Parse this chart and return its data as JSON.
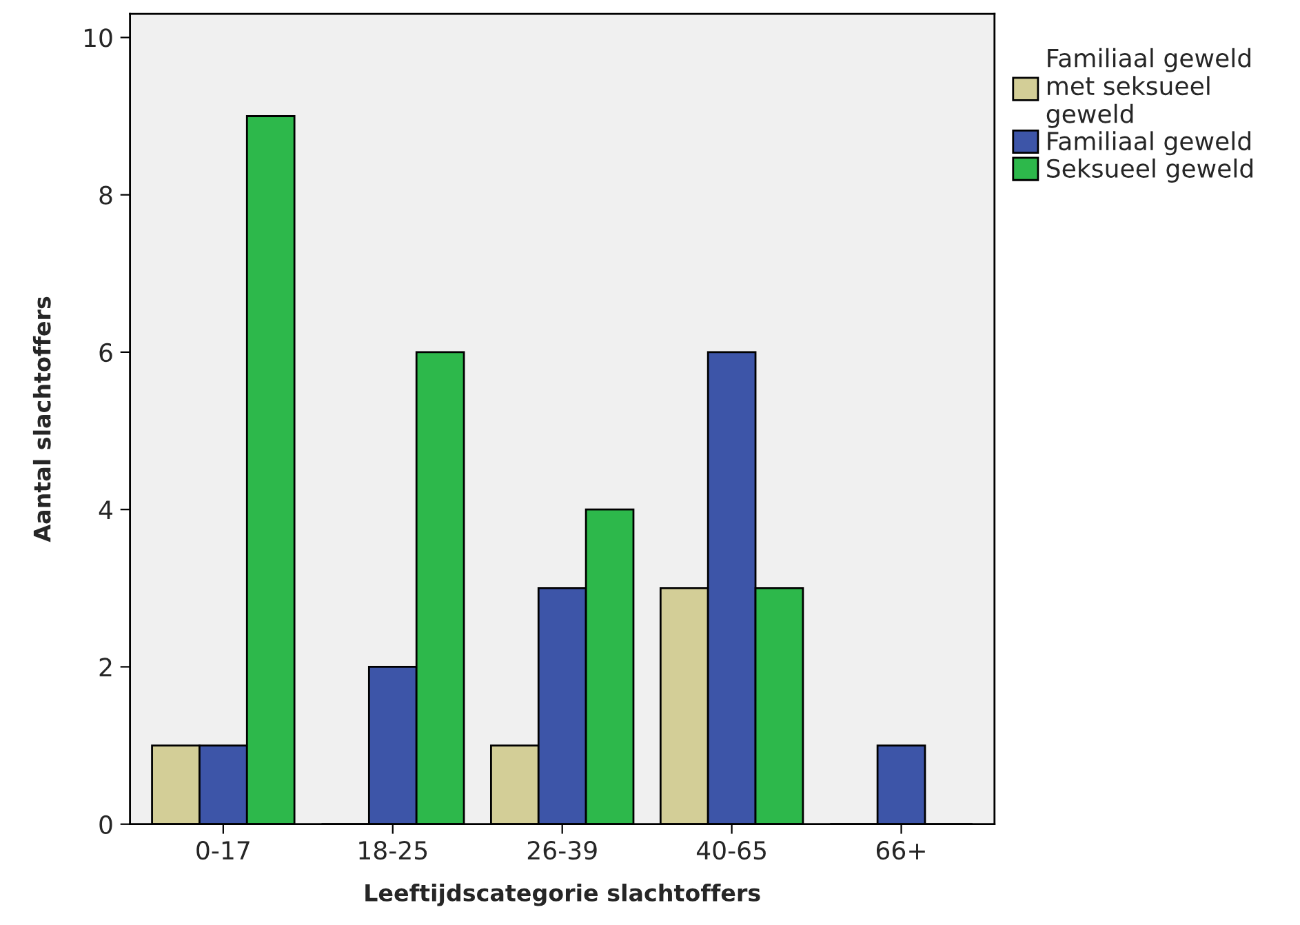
{
  "chart_data": {
    "type": "bar",
    "xlabel": "Leeftijdscategorie slachtoffers",
    "ylabel": "Aantal slachtoffers",
    "categories": [
      "0-17",
      "18-25",
      "26-39",
      "40-65",
      "66+"
    ],
    "series": [
      {
        "name": "Familiaal geweld met seksueel geweld",
        "color": "#d3ce97",
        "values": [
          1,
          0,
          1,
          3,
          0
        ]
      },
      {
        "name": "Familiaal geweld",
        "color": "#3d55a8",
        "values": [
          1,
          2,
          3,
          6,
          1
        ]
      },
      {
        "name": "Seksueel geweld",
        "color": "#2db84b",
        "values": [
          9,
          6,
          4,
          3,
          0
        ]
      }
    ],
    "ylim": [
      0,
      10.3
    ],
    "yticks": [
      0,
      2,
      4,
      6,
      8,
      10
    ],
    "grid": false,
    "legend": "top right"
  }
}
